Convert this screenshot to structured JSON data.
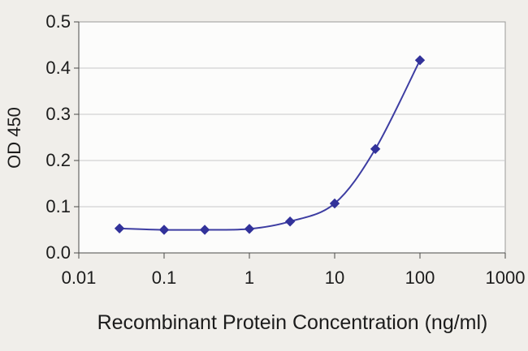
{
  "figure": {
    "description": "ELISA standard curve line chart"
  },
  "chart_data": {
    "type": "line",
    "marker": "diamond",
    "x": [
      0.03,
      0.1,
      0.3,
      1,
      3,
      10,
      30,
      100
    ],
    "y": [
      0.053,
      0.05,
      0.05,
      0.052,
      0.068,
      0.107,
      0.225,
      0.417
    ],
    "title": "",
    "xlabel": "Recombinant Protein Concentration (ng/ml)",
    "ylabel": "OD 450",
    "x_scale": "log",
    "xlim": [
      0.01,
      1000
    ],
    "ylim": [
      0,
      0.5
    ],
    "x_ticks": [
      0.01,
      0.1,
      1,
      10,
      100,
      1000
    ],
    "x_tick_labels": [
      "0.01",
      "0.1",
      "1",
      "10",
      "100",
      "1000"
    ],
    "y_ticks": [
      0,
      0.1,
      0.2,
      0.3,
      0.4,
      0.5
    ],
    "y_tick_labels": [
      "0.0",
      "0.1",
      "0.2",
      "0.3",
      "0.4",
      "0.5"
    ],
    "grid": "horizontal",
    "legend": "none",
    "colors": {
      "line": "#3d3da2",
      "marker": "#32329a",
      "grid": "#c9c9c9",
      "plot_border": "#9a9a98",
      "axis_line": "#4a4a48",
      "plot_bg": "#fcfcfb",
      "page_bg": "#f0eeea",
      "text": "#1c1c1c"
    }
  }
}
